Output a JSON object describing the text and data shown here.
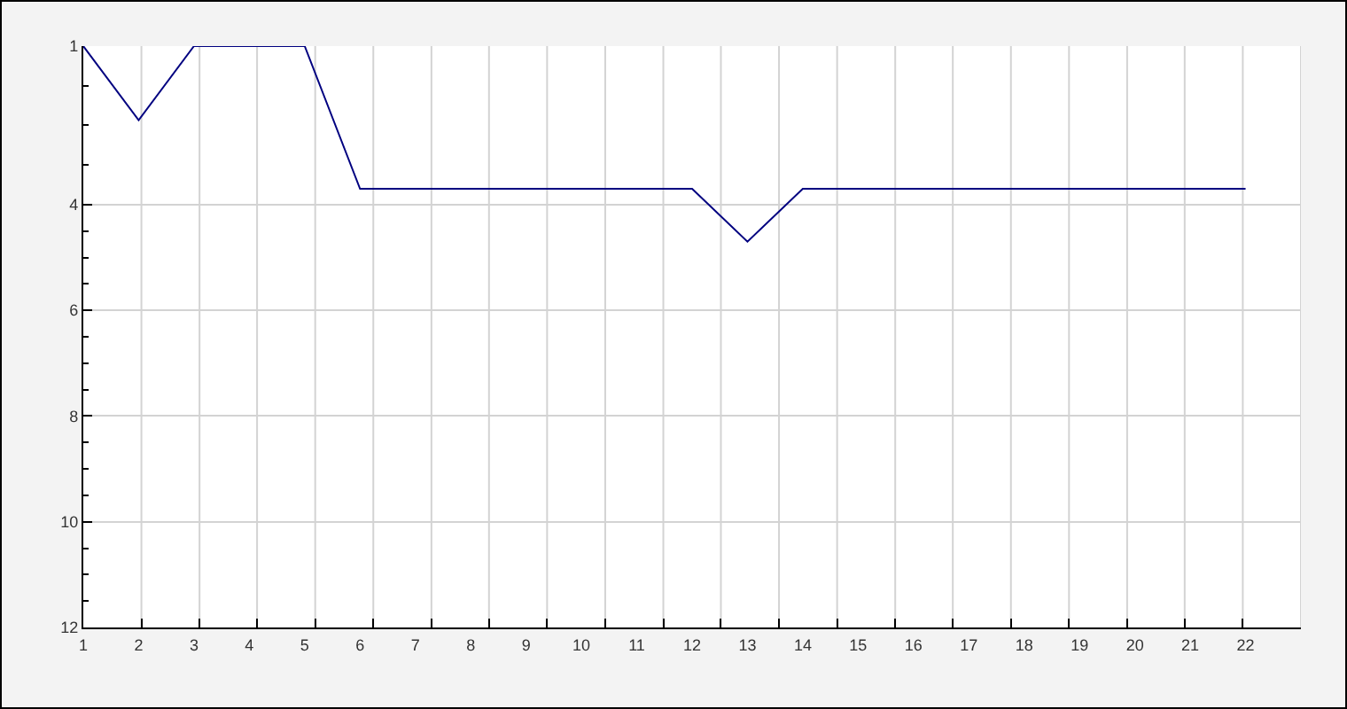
{
  "chart_data": {
    "type": "line",
    "x": [
      1,
      2,
      3,
      4,
      5,
      6,
      7,
      8,
      9,
      10,
      11,
      12,
      13,
      14,
      15,
      16,
      17,
      18,
      19,
      20,
      21,
      22
    ],
    "series": [
      {
        "color": "#000080",
        "values": [
          1,
          2.4,
          1,
          1,
          1,
          3.7,
          3.7,
          3.7,
          3.7,
          3.7,
          3.7,
          3.7,
          4.7,
          3.7,
          3.7,
          3.7,
          3.7,
          3.7,
          3.7,
          3.7,
          3.7,
          3.7
        ]
      }
    ],
    "xlim": [
      1,
      23
    ],
    "xticks": [
      1,
      2,
      3,
      4,
      5,
      6,
      7,
      8,
      9,
      10,
      11,
      12,
      13,
      14,
      15,
      16,
      17,
      18,
      19,
      20,
      21,
      22,
      {
        "value": 2.05,
        "label": null
      },
      {
        "value": 3.1,
        "label": null
      },
      {
        "value": 4.14,
        "label": null
      },
      {
        "value": 5.19,
        "label": null
      },
      {
        "value": 6.24,
        "label": null
      },
      {
        "value": 7.29,
        "label": null
      },
      {
        "value": 8.33,
        "label": null
      },
      {
        "value": 9.38,
        "label": null
      },
      {
        "value": 10.43,
        "label": null
      },
      {
        "value": 11.48,
        "label": null
      },
      {
        "value": 12.52,
        "label": null
      },
      {
        "value": 13.57,
        "label": null
      },
      {
        "value": 14.62,
        "label": null
      },
      {
        "value": 15.67,
        "label": null
      },
      {
        "value": 16.71,
        "label": null
      },
      {
        "value": 17.76,
        "label": null
      },
      {
        "value": 18.81,
        "label": null
      },
      {
        "value": 19.86,
        "label": null
      },
      {
        "value": 20.9,
        "label": null
      },
      {
        "value": 21.95,
        "label": null
      },
      {
        "value": 23,
        "label": null
      }
    ],
    "ylim": [
      12,
      1
    ],
    "yticks": [
      1,
      4,
      6,
      8,
      10,
      12,
      {
        "value": 1.75,
        "label": null
      },
      {
        "value": 2.5,
        "label": null
      },
      {
        "value": 3.25,
        "label": null
      },
      {
        "value": 4.5,
        "label": null
      },
      {
        "value": 5,
        "label": null
      },
      {
        "value": 5.5,
        "label": null
      },
      {
        "value": 6.5,
        "label": null
      },
      {
        "value": 7,
        "label": null
      },
      {
        "value": 7.5,
        "label": null
      },
      {
        "value": 8.5,
        "label": null
      },
      {
        "value": 9,
        "label": null
      },
      {
        "value": 9.5,
        "label": null
      },
      {
        "value": 10.5,
        "label": null
      },
      {
        "value": 11,
        "label": null
      },
      {
        "value": 11.5,
        "label": null
      }
    ],
    "grid": true,
    "line_style": "solid"
  }
}
